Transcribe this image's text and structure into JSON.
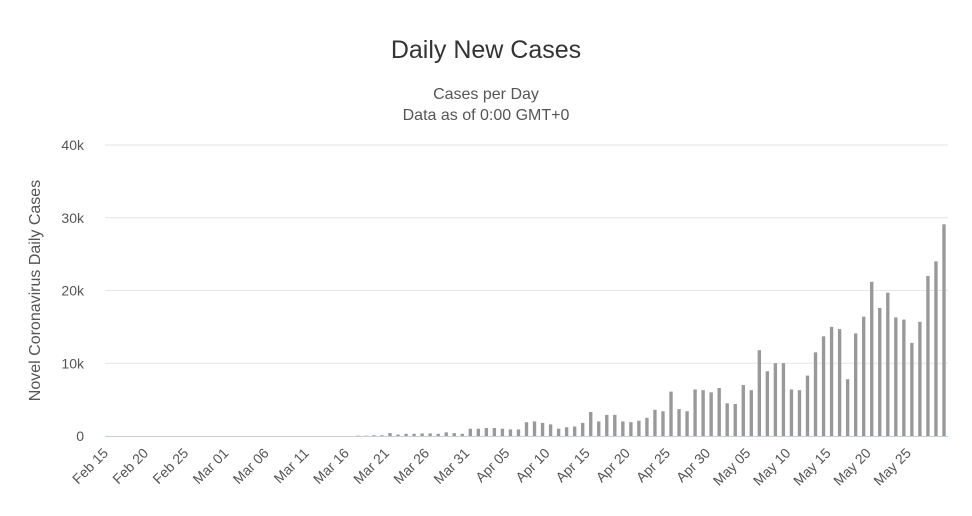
{
  "chart_data": {
    "type": "bar",
    "title": "Daily New Cases",
    "subtitle": [
      "Cases per Day",
      "Data as of 0:00 GMT+0"
    ],
    "ylabel": "Novel Coronavirus Daily Cases",
    "xlabel": "",
    "ylim": [
      0,
      40000
    ],
    "yticks": [
      {
        "value": 0,
        "label": "0"
      },
      {
        "value": 10000,
        "label": "10k"
      },
      {
        "value": 20000,
        "label": "20k"
      },
      {
        "value": 30000,
        "label": "30k"
      },
      {
        "value": 40000,
        "label": "40k"
      }
    ],
    "xtick_labels": [
      "Feb 15",
      "Feb 20",
      "Feb 25",
      "Mar 01",
      "Mar 06",
      "Mar 11",
      "Mar 16",
      "Mar 21",
      "Mar 26",
      "Mar 31",
      "Apr 05",
      "Apr 10",
      "Apr 15",
      "Apr 20",
      "Apr 25",
      "Apr 30",
      "May 05",
      "May 10",
      "May 15",
      "May 20",
      "May 25"
    ],
    "grid": true,
    "bar_color": "#999999",
    "categories": [
      "Feb 15",
      "Feb 16",
      "Feb 17",
      "Feb 18",
      "Feb 19",
      "Feb 20",
      "Feb 21",
      "Feb 22",
      "Feb 23",
      "Feb 24",
      "Feb 25",
      "Feb 26",
      "Feb 27",
      "Feb 28",
      "Feb 29",
      "Mar 01",
      "Mar 02",
      "Mar 03",
      "Mar 04",
      "Mar 05",
      "Mar 06",
      "Mar 07",
      "Mar 08",
      "Mar 09",
      "Mar 10",
      "Mar 11",
      "Mar 12",
      "Mar 13",
      "Mar 14",
      "Mar 15",
      "Mar 16",
      "Mar 17",
      "Mar 18",
      "Mar 19",
      "Mar 20",
      "Mar 21",
      "Mar 22",
      "Mar 23",
      "Mar 24",
      "Mar 25",
      "Mar 26",
      "Mar 27",
      "Mar 28",
      "Mar 29",
      "Mar 30",
      "Mar 31",
      "Apr 01",
      "Apr 02",
      "Apr 03",
      "Apr 04",
      "Apr 05",
      "Apr 06",
      "Apr 07",
      "Apr 08",
      "Apr 09",
      "Apr 10",
      "Apr 11",
      "Apr 12",
      "Apr 13",
      "Apr 14",
      "Apr 15",
      "Apr 16",
      "Apr 17",
      "Apr 18",
      "Apr 19",
      "Apr 20",
      "Apr 21",
      "Apr 22",
      "Apr 23",
      "Apr 24",
      "Apr 25",
      "Apr 26",
      "Apr 27",
      "Apr 28",
      "Apr 29",
      "Apr 30",
      "May 01",
      "May 02",
      "May 03",
      "May 04",
      "May 05",
      "May 06",
      "May 07",
      "May 08",
      "May 09",
      "May 10",
      "May 11",
      "May 12",
      "May 13",
      "May 14",
      "May 15",
      "May 16",
      "May 17",
      "May 18",
      "May 19",
      "May 20",
      "May 21",
      "May 22",
      "May 23",
      "May 24",
      "May 25",
      "May 26",
      "May 27",
      "May 28",
      "May 29"
    ],
    "values": [
      0,
      0,
      0,
      0,
      0,
      0,
      0,
      0,
      0,
      0,
      0,
      0,
      0,
      0,
      0,
      0,
      0,
      0,
      0,
      0,
      0,
      0,
      0,
      0,
      0,
      0,
      0,
      0,
      0,
      0,
      0,
      50,
      50,
      100,
      100,
      400,
      200,
      300,
      300,
      350,
      350,
      300,
      500,
      400,
      300,
      1000,
      1000,
      1100,
      1100,
      1000,
      900,
      900,
      1900,
      2000,
      1800,
      1600,
      1000,
      1200,
      1300,
      1800,
      3300,
      2000,
      2900,
      2900,
      2000,
      1900,
      2100,
      2500,
      3600,
      3400,
      6100,
      3700,
      3400,
      6400,
      6300,
      6000,
      6600,
      4500,
      4400,
      7000,
      6300,
      11800,
      8900,
      10000,
      10000,
      6400,
      6300,
      8300,
      11500,
      13700,
      15000,
      14700,
      7800,
      14100,
      16400,
      21200,
      17600,
      19700,
      16300,
      16000,
      12800,
      15700,
      22000,
      24000,
      29100
    ]
  }
}
